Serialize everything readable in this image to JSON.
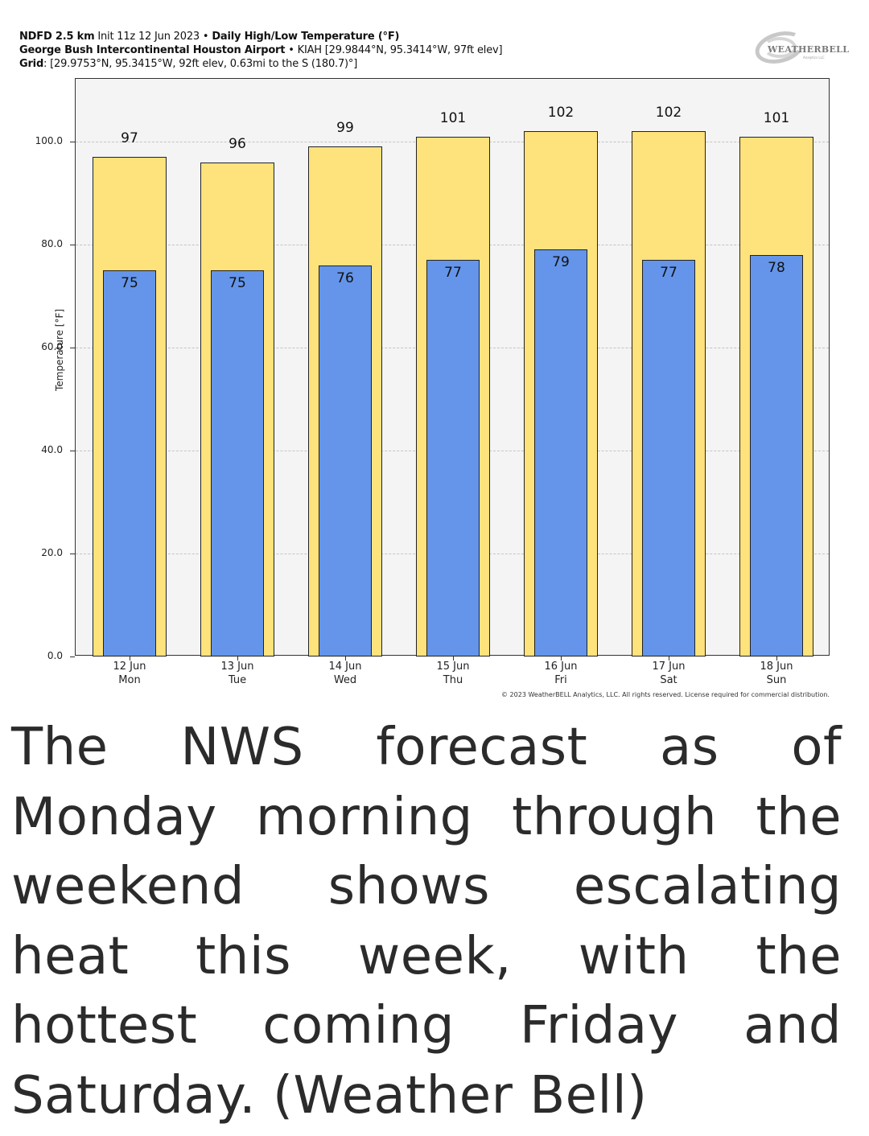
{
  "header": {
    "line1": {
      "model": "NDFD 2.5 km",
      "init": " Init 11z 12 Jun 2023 • ",
      "product": "Daily High/Low Temperature (°F)"
    },
    "line2": {
      "station_name": "George Bush Intercontinental Houston Airport",
      "station_info": " • KIAH [29.9844°N, 95.3414°W, 97ft elev]"
    },
    "line3": {
      "label": "Grid",
      "info": ": [29.9753°N, 95.3415°W, 92ft elev, 0.63mi to the S (180.7)°]"
    }
  },
  "logo": {
    "name": "WEATHERBELL",
    "sub": "Analytics LLC"
  },
  "colors": {
    "high_bar": "#fee27c",
    "low_bar": "#6495ea",
    "plot_bg": "#f4f4f4",
    "caption_text": "#2b2b2b"
  },
  "chart_data": {
    "type": "bar",
    "title": "Daily High/Low Temperature (°F)",
    "xlabel": "",
    "ylabel": "Temperature [°F]",
    "ylim": [
      0,
      112
    ],
    "yticks": [
      "0.0",
      "20.0",
      "40.0",
      "60.0",
      "80.0",
      "100.0"
    ],
    "grid": true,
    "legend": "none",
    "categories": [
      "12 Jun Mon",
      "13 Jun Tue",
      "14 Jun Wed",
      "15 Jun Thu",
      "16 Jun Fri",
      "17 Jun Sat",
      "18 Jun Sun"
    ],
    "category_dates": [
      "12 Jun",
      "13 Jun",
      "14 Jun",
      "15 Jun",
      "16 Jun",
      "17 Jun",
      "18 Jun"
    ],
    "category_days": [
      "Mon",
      "Tue",
      "Wed",
      "Thu",
      "Fri",
      "Sat",
      "Sun"
    ],
    "series": [
      {
        "name": "High",
        "color": "#fee27c",
        "values": [
          97,
          96,
          99,
          101,
          102,
          102,
          101
        ]
      },
      {
        "name": "Low",
        "color": "#6495ea",
        "values": [
          75,
          75,
          76,
          77,
          79,
          77,
          78
        ]
      }
    ]
  },
  "copyright": "© 2023 WeatherBELL Analytics, LLC. All rights reserved. License required for commercial distribution.",
  "caption": "The NWS forecast as of Monday morning through the weekend shows escalating heat this week, with the hottest coming Friday and Saturday. (Weather Bell)"
}
